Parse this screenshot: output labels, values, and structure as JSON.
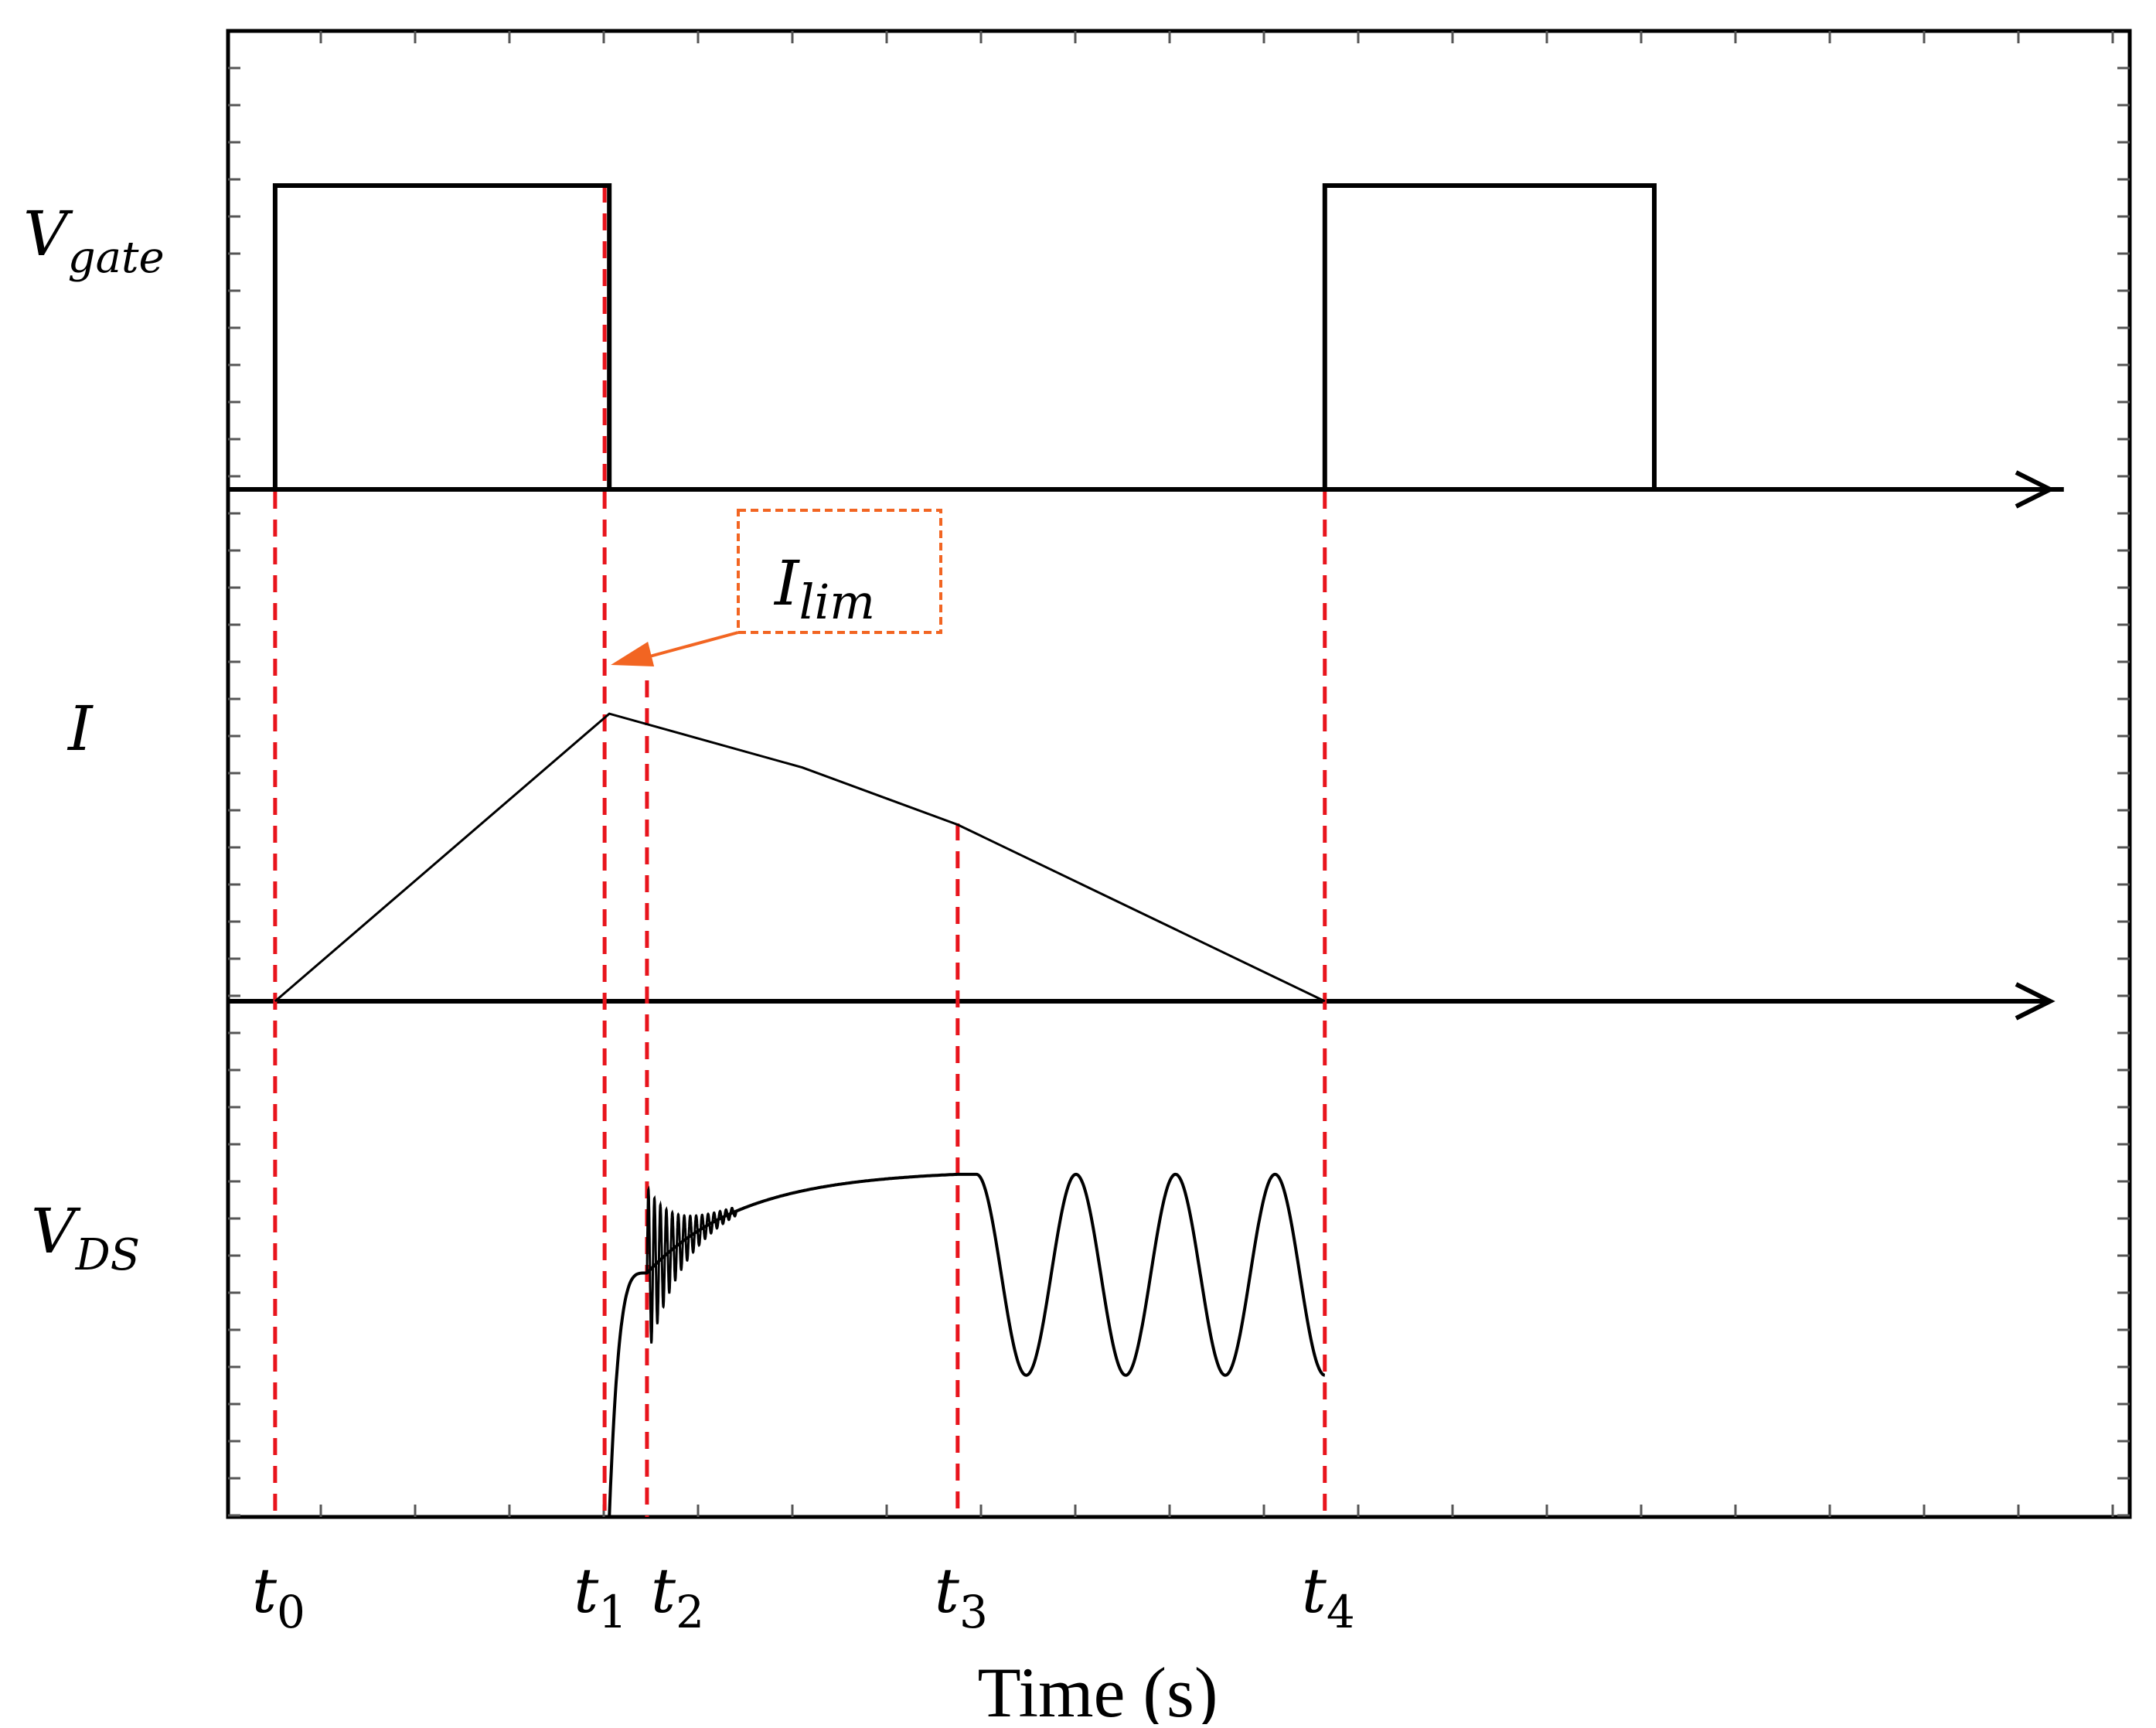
{
  "chart_data": {
    "type": "line",
    "title": "",
    "xlabel": "Time (s)",
    "ylabel": "",
    "grid": false,
    "event_ticks": [
      {
        "id": "t0",
        "base": "t",
        "sub": "0",
        "x": 0.5
      },
      {
        "id": "t1",
        "base": "t",
        "sub": "1",
        "x": 4.0
      },
      {
        "id": "t2",
        "base": "t",
        "sub": "2",
        "x": 4.45
      },
      {
        "id": "t3",
        "base": "t",
        "sub": "3",
        "x": 7.75
      },
      {
        "id": "t4",
        "base": "t",
        "sub": "4",
        "x": 11.65
      }
    ],
    "xlim": [
      0,
      20.2
    ],
    "annotation": {
      "base": "I",
      "sub": "lim",
      "color": "#F26522",
      "points_to": "t1"
    },
    "series": [
      {
        "name": "Vgate",
        "label_base": "V",
        "label_sub": "gate",
        "ylim": [
          0,
          1.2
        ],
        "x": [
          0.5,
          0.5,
          4.05,
          4.05,
          11.65,
          11.65,
          15.15,
          15.15,
          19.5
        ],
        "y": [
          0,
          1,
          1,
          0,
          0,
          1,
          1,
          0,
          0
        ]
      },
      {
        "name": "I",
        "label_base": "I",
        "label_sub": "",
        "ylim": [
          0,
          1.2
        ],
        "x": [
          0.5,
          4.05,
          6.1,
          7.75,
          11.65
        ],
        "y": [
          0,
          0.855,
          0.695,
          0.525,
          0
        ]
      },
      {
        "name": "VDS",
        "label_base": "V",
        "label_sub": "DS",
        "ylim": [
          0,
          1.0
        ],
        "segments": [
          {
            "kind": "rise",
            "x0": 4.05,
            "x1": 4.45,
            "y0": 0,
            "y1": 0.68
          },
          {
            "kind": "damped_ringing",
            "x0": 4.45,
            "x1": 5.4,
            "amplitude": 0.24,
            "periods": 15
          },
          {
            "kind": "approach",
            "x0": 4.45,
            "x1": 7.75,
            "y0": 0.68,
            "y1": 0.955
          },
          {
            "kind": "flat",
            "x0": 7.75,
            "x1": 7.95,
            "y": 0.955
          },
          {
            "kind": "oscillation",
            "x0": 7.95,
            "x1": 11.65,
            "center": 0.675,
            "amplitude": 0.28,
            "periods": 3.5
          }
        ]
      }
    ]
  }
}
